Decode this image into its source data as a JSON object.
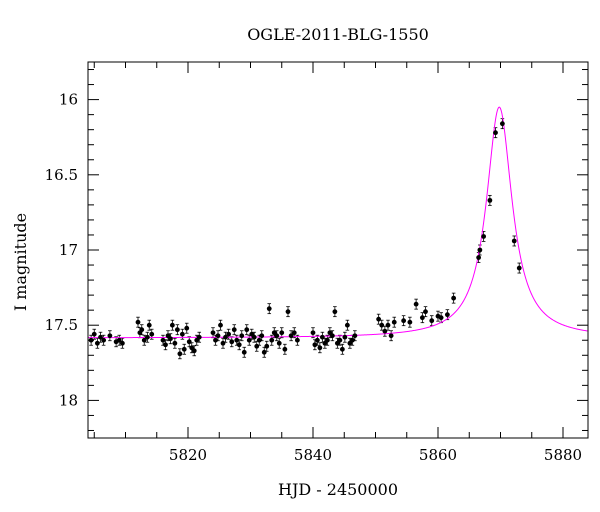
{
  "chart_data": {
    "type": "scatter",
    "title": "OGLE-2011-BLG-1550",
    "xlabel": "HJD - 2450000",
    "ylabel": "I magnitude",
    "xlim": [
      5804,
      5884
    ],
    "ylim": [
      18.25,
      15.75
    ],
    "y_inverted": true,
    "x_ticks": [
      5820,
      5840,
      5860,
      5880
    ],
    "y_ticks": [
      16,
      16.5,
      17,
      17.5,
      18
    ],
    "grid": false,
    "colors": {
      "data": "#000000",
      "model": "#ff00ff"
    },
    "model": {
      "t0": 5869.8,
      "baseline": 17.585,
      "peak": 16.05,
      "width": 2.5
    },
    "series": [
      {
        "points": [
          [
            5804.5,
            17.6
          ],
          [
            5805.0,
            17.56
          ],
          [
            5805.5,
            17.62
          ],
          [
            5806.0,
            17.58
          ],
          [
            5806.5,
            17.6
          ],
          [
            5807.5,
            17.57
          ],
          [
            5808.5,
            17.61
          ],
          [
            5809.0,
            17.6
          ],
          [
            5809.5,
            17.62
          ],
          [
            5812.0,
            17.48
          ],
          [
            5812.3,
            17.55
          ],
          [
            5812.6,
            17.53
          ],
          [
            5813.0,
            17.6
          ],
          [
            5813.5,
            17.58
          ],
          [
            5813.8,
            17.5
          ],
          [
            5814.2,
            17.56
          ],
          [
            5816.0,
            17.6
          ],
          [
            5816.4,
            17.63
          ],
          [
            5816.8,
            17.57
          ],
          [
            5817.2,
            17.59
          ],
          [
            5817.5,
            17.5
          ],
          [
            5817.9,
            17.62
          ],
          [
            5818.3,
            17.53
          ],
          [
            5818.7,
            17.69
          ],
          [
            5819.1,
            17.56
          ],
          [
            5819.4,
            17.66
          ],
          [
            5819.8,
            17.52
          ],
          [
            5820.2,
            17.61
          ],
          [
            5820.6,
            17.65
          ],
          [
            5821.0,
            17.67
          ],
          [
            5821.4,
            17.6
          ],
          [
            5821.8,
            17.58
          ],
          [
            5824.0,
            17.55
          ],
          [
            5824.4,
            17.6
          ],
          [
            5824.8,
            17.57
          ],
          [
            5825.2,
            17.5
          ],
          [
            5825.6,
            17.62
          ],
          [
            5826.0,
            17.58
          ],
          [
            5826.5,
            17.56
          ],
          [
            5827.0,
            17.61
          ],
          [
            5827.4,
            17.53
          ],
          [
            5827.8,
            17.6
          ],
          [
            5828.2,
            17.63
          ],
          [
            5828.6,
            17.57
          ],
          [
            5829.0,
            17.68
          ],
          [
            5829.4,
            17.53
          ],
          [
            5829.8,
            17.6
          ],
          [
            5830.2,
            17.56
          ],
          [
            5830.6,
            17.58
          ],
          [
            5831.0,
            17.64
          ],
          [
            5831.4,
            17.6
          ],
          [
            5831.8,
            17.57
          ],
          [
            5832.2,
            17.68
          ],
          [
            5832.6,
            17.64
          ],
          [
            5833.0,
            17.39
          ],
          [
            5833.4,
            17.6
          ],
          [
            5833.8,
            17.55
          ],
          [
            5834.2,
            17.57
          ],
          [
            5834.6,
            17.62
          ],
          [
            5835.0,
            17.55
          ],
          [
            5835.5,
            17.66
          ],
          [
            5836.0,
            17.41
          ],
          [
            5836.5,
            17.57
          ],
          [
            5837.0,
            17.55
          ],
          [
            5837.5,
            17.6
          ],
          [
            5840.0,
            17.55
          ],
          [
            5840.3,
            17.63
          ],
          [
            5840.7,
            17.6
          ],
          [
            5841.1,
            17.65
          ],
          [
            5841.5,
            17.58
          ],
          [
            5841.9,
            17.62
          ],
          [
            5842.3,
            17.6
          ],
          [
            5842.7,
            17.55
          ],
          [
            5843.1,
            17.57
          ],
          [
            5843.5,
            17.41
          ],
          [
            5843.9,
            17.62
          ],
          [
            5844.3,
            17.6
          ],
          [
            5844.7,
            17.66
          ],
          [
            5845.1,
            17.58
          ],
          [
            5845.5,
            17.5
          ],
          [
            5845.9,
            17.62
          ],
          [
            5846.3,
            17.6
          ],
          [
            5846.7,
            17.57
          ],
          [
            5850.5,
            17.46
          ],
          [
            5851.0,
            17.5
          ],
          [
            5851.5,
            17.54
          ],
          [
            5852.0,
            17.5
          ],
          [
            5852.5,
            17.57
          ],
          [
            5853.0,
            17.48
          ],
          [
            5854.5,
            17.47
          ],
          [
            5855.5,
            17.48
          ],
          [
            5856.5,
            17.36
          ],
          [
            5857.5,
            17.45
          ],
          [
            5858.0,
            17.41
          ],
          [
            5859.0,
            17.47
          ],
          [
            5860.0,
            17.44
          ],
          [
            5860.5,
            17.45
          ],
          [
            5861.5,
            17.43
          ],
          [
            5862.5,
            17.32
          ],
          [
            5866.5,
            17.05
          ],
          [
            5866.7,
            17.0
          ],
          [
            5867.3,
            16.91
          ],
          [
            5868.3,
            16.67
          ],
          [
            5869.2,
            16.22
          ],
          [
            5870.3,
            16.16
          ],
          [
            5872.2,
            16.94
          ],
          [
            5873.0,
            17.12
          ]
        ]
      }
    ]
  }
}
